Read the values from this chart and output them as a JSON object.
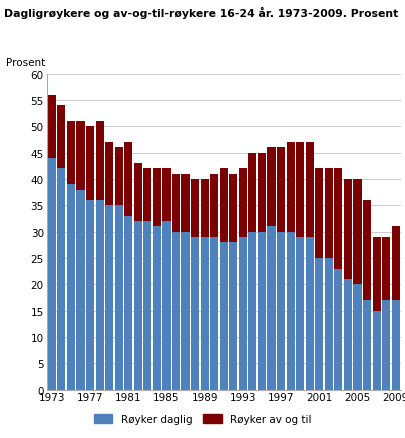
{
  "title": "Dagligrøykere og av-og-til-røykere 16-24 år. 1973-2009. Prosent",
  "ylabel": "Prosent",
  "years": [
    1973,
    1974,
    1975,
    1976,
    1977,
    1978,
    1979,
    1980,
    1981,
    1982,
    1983,
    1984,
    1985,
    1986,
    1987,
    1988,
    1989,
    1990,
    1991,
    1992,
    1993,
    1994,
    1995,
    1996,
    1997,
    1998,
    1999,
    2000,
    2001,
    2002,
    2003,
    2004,
    2005,
    2006,
    2007,
    2008,
    2009
  ],
  "daglig": [
    44,
    42,
    39,
    38,
    36,
    36,
    35,
    35,
    33,
    32,
    32,
    31,
    32,
    30,
    30,
    29,
    29,
    29,
    28,
    28,
    29,
    30,
    30,
    31,
    30,
    30,
    29,
    29,
    25,
    25,
    23,
    21,
    20,
    17,
    15,
    17,
    17
  ],
  "av_og_til": [
    12,
    12,
    12,
    13,
    14,
    15,
    12,
    11,
    14,
    11,
    10,
    11,
    10,
    11,
    11,
    11,
    11,
    12,
    14,
    13,
    13,
    15,
    15,
    15,
    16,
    17,
    18,
    18,
    17,
    17,
    19,
    19,
    20,
    19,
    14,
    12,
    14
  ],
  "color_daglig": "#4f81bd",
  "color_av_og_til": "#7B0000",
  "ylim": [
    0,
    60
  ],
  "yticks": [
    0,
    5,
    10,
    15,
    20,
    25,
    30,
    35,
    40,
    45,
    50,
    55,
    60
  ],
  "xtick_years": [
    1973,
    1977,
    1981,
    1985,
    1989,
    1993,
    1997,
    2001,
    2005,
    2009
  ],
  "legend_daglig": "Røyker daglig",
  "legend_av_og_til": "Røyker av og til",
  "grid_color": "#cccccc",
  "bar_width": 0.85
}
